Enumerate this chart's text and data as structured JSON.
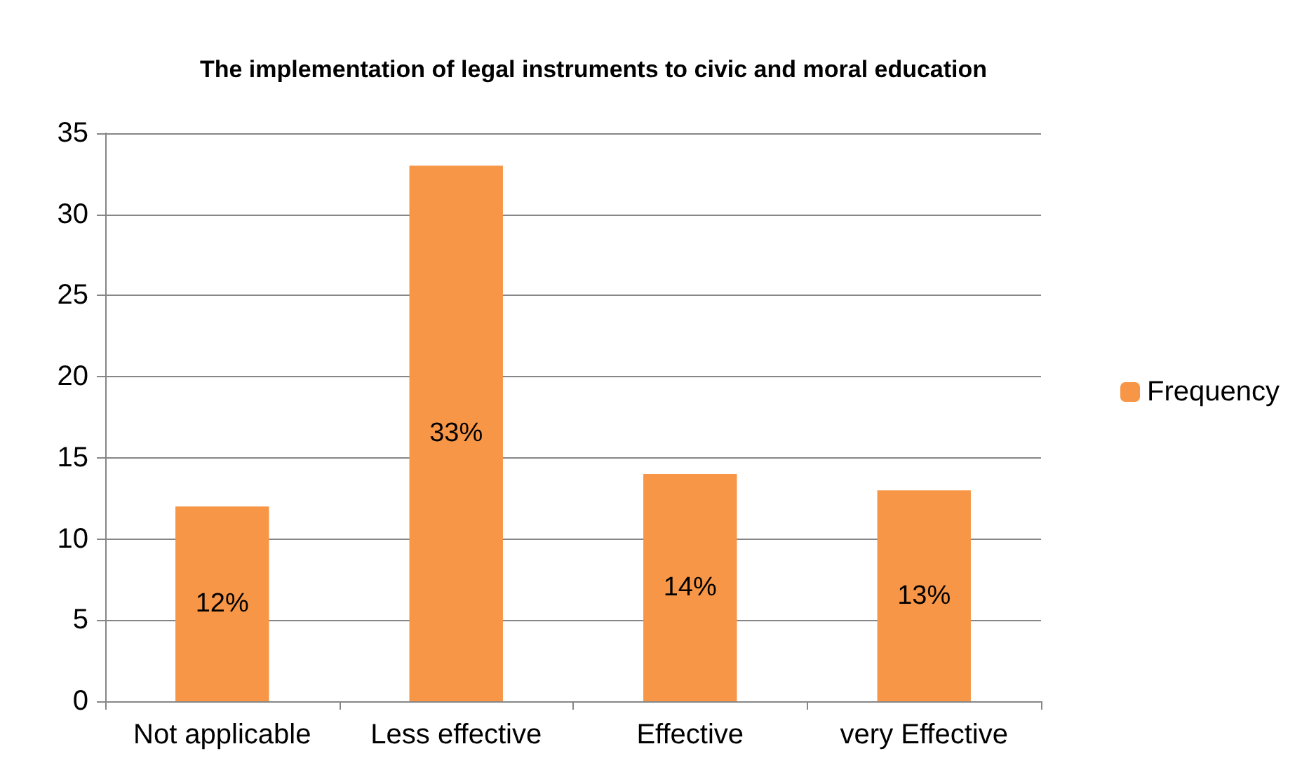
{
  "chart_data": {
    "type": "bar",
    "title": "The implementation of legal instruments to civic and moral education",
    "categories": [
      "Not applicable",
      "Less effective",
      "Effective",
      "very Effective"
    ],
    "series": [
      {
        "name": "Frequency",
        "color": "#f79646",
        "values": [
          12,
          33,
          14,
          13
        ],
        "value_labels": [
          "12%",
          "33%",
          "14%",
          "13%"
        ]
      }
    ],
    "ylim": [
      0,
      35
    ],
    "yticks": [
      0,
      5,
      10,
      15,
      20,
      25,
      30,
      35
    ],
    "grid": "y",
    "legend": "right"
  }
}
